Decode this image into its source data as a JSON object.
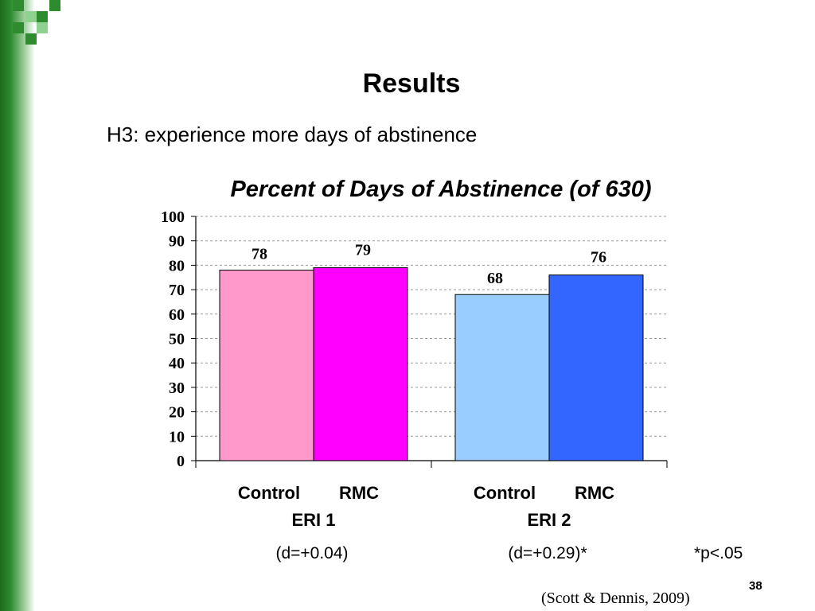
{
  "slide": {
    "title": "Results",
    "subtitle": "H3: experience more days of abstinence",
    "page_number": "38",
    "citation": "(Scott & Dennis, 2009)",
    "significance_note": "*p<.05",
    "accent_color": "#2e8b2e"
  },
  "chart_data": {
    "type": "bar",
    "title": "Percent of Days of Abstinence (of 630)",
    "xlabel": "",
    "ylabel": "",
    "ylim": [
      0,
      100
    ],
    "yticks": [
      0,
      10,
      20,
      30,
      40,
      50,
      60,
      70,
      80,
      90,
      100
    ],
    "grid": true,
    "groups": [
      {
        "name": "ERI 1",
        "effect": "(d=+0.04)",
        "bars": [
          {
            "category": "Control",
            "value": 78,
            "color": "#ff99cc"
          },
          {
            "category": "RMC",
            "value": 79,
            "color": "#ff00ff"
          }
        ]
      },
      {
        "name": "ERI 2",
        "effect": "(d=+0.29)*",
        "bars": [
          {
            "category": "Control",
            "value": 68,
            "color": "#99ccff"
          },
          {
            "category": "RMC",
            "value": 76,
            "color": "#3366ff"
          }
        ]
      }
    ]
  }
}
